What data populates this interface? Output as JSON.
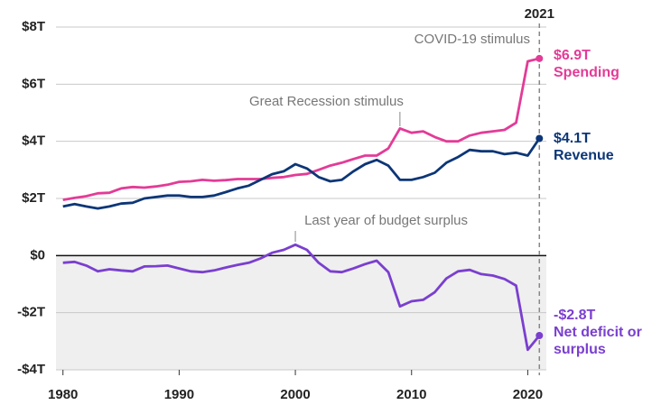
{
  "chart_data": {
    "type": "line",
    "x": [
      1980,
      1981,
      1982,
      1983,
      1984,
      1985,
      1986,
      1987,
      1988,
      1989,
      1990,
      1991,
      1992,
      1993,
      1994,
      1995,
      1996,
      1997,
      1998,
      1999,
      2000,
      2001,
      2002,
      2003,
      2004,
      2005,
      2006,
      2007,
      2008,
      2009,
      2010,
      2011,
      2012,
      2013,
      2014,
      2015,
      2016,
      2017,
      2018,
      2019,
      2020,
      2021
    ],
    "series": [
      {
        "name": "Spending",
        "color": "#e33b97",
        "values": [
          1.95,
          2.02,
          2.08,
          2.18,
          2.2,
          2.35,
          2.4,
          2.38,
          2.42,
          2.48,
          2.58,
          2.6,
          2.65,
          2.62,
          2.64,
          2.68,
          2.68,
          2.68,
          2.72,
          2.75,
          2.82,
          2.86,
          3.0,
          3.15,
          3.25,
          3.38,
          3.5,
          3.5,
          3.75,
          4.45,
          4.3,
          4.35,
          4.15,
          4.0,
          4.0,
          4.2,
          4.3,
          4.35,
          4.4,
          4.65,
          6.8,
          6.9
        ],
        "value_labels": [
          null,
          null,
          null,
          null,
          null,
          null,
          null,
          null,
          null,
          null,
          null,
          null,
          null,
          null,
          null,
          null,
          null,
          null,
          null,
          null,
          null,
          null,
          null,
          null,
          null,
          null,
          null,
          null,
          null,
          null,
          null,
          null,
          null,
          null,
          null,
          null,
          null,
          null,
          null,
          null,
          null,
          "$6.9T"
        ]
      },
      {
        "name": "Revenue",
        "color": "#0c3677",
        "values": [
          1.72,
          1.8,
          1.72,
          1.65,
          1.72,
          1.82,
          1.85,
          2.0,
          2.05,
          2.1,
          2.1,
          2.05,
          2.05,
          2.1,
          2.22,
          2.35,
          2.45,
          2.65,
          2.85,
          2.95,
          3.2,
          3.05,
          2.75,
          2.6,
          2.65,
          2.95,
          3.2,
          3.35,
          3.15,
          2.65,
          2.65,
          2.75,
          2.9,
          3.25,
          3.45,
          3.7,
          3.65,
          3.65,
          3.55,
          3.6,
          3.5,
          4.1
        ],
        "value_labels": [
          null,
          null,
          null,
          null,
          null,
          null,
          null,
          null,
          null,
          null,
          null,
          null,
          null,
          null,
          null,
          null,
          null,
          null,
          null,
          null,
          null,
          null,
          null,
          null,
          null,
          null,
          null,
          null,
          null,
          null,
          null,
          null,
          null,
          null,
          null,
          null,
          null,
          null,
          null,
          null,
          null,
          "$4.1T"
        ]
      },
      {
        "name": "Net deficit or surplus",
        "color": "#7a3fcf",
        "values": [
          -0.25,
          -0.22,
          -0.35,
          -0.55,
          -0.48,
          -0.52,
          -0.55,
          -0.38,
          -0.37,
          -0.35,
          -0.45,
          -0.55,
          -0.58,
          -0.52,
          -0.42,
          -0.33,
          -0.25,
          -0.1,
          0.1,
          0.2,
          0.38,
          0.2,
          -0.25,
          -0.55,
          -0.58,
          -0.45,
          -0.3,
          -0.18,
          -0.58,
          -1.78,
          -1.6,
          -1.55,
          -1.28,
          -0.8,
          -0.55,
          -0.5,
          -0.65,
          -0.7,
          -0.82,
          -1.05,
          -3.3,
          -2.8
        ],
        "value_labels": [
          null,
          null,
          null,
          null,
          null,
          null,
          null,
          null,
          null,
          null,
          null,
          null,
          null,
          null,
          null,
          null,
          null,
          null,
          null,
          null,
          null,
          null,
          null,
          null,
          null,
          null,
          null,
          null,
          null,
          null,
          null,
          null,
          null,
          null,
          null,
          null,
          null,
          null,
          null,
          null,
          null,
          "-$2.8T"
        ]
      }
    ],
    "xlim": [
      1979.4,
      2021.6
    ],
    "xticks": [
      1980,
      1990,
      2000,
      2010,
      2020
    ],
    "ylim": [
      -4,
      8
    ],
    "yticks": [
      {
        "value": 8,
        "label": "$8T"
      },
      {
        "value": 6,
        "label": "$6T"
      },
      {
        "value": 4,
        "label": "$4T"
      },
      {
        "value": 2,
        "label": "$2T"
      },
      {
        "value": 0,
        "label": "$0"
      },
      {
        "value": -2,
        "label": "-$2T"
      },
      {
        "value": -4,
        "label": "-$4T"
      }
    ],
    "grid": true,
    "highlight": {
      "value": 2021,
      "label": "2021"
    },
    "annotations": [
      "COVID-19 stimulus",
      "Great Recession stimulus",
      "Last year of budget surplus"
    ]
  }
}
